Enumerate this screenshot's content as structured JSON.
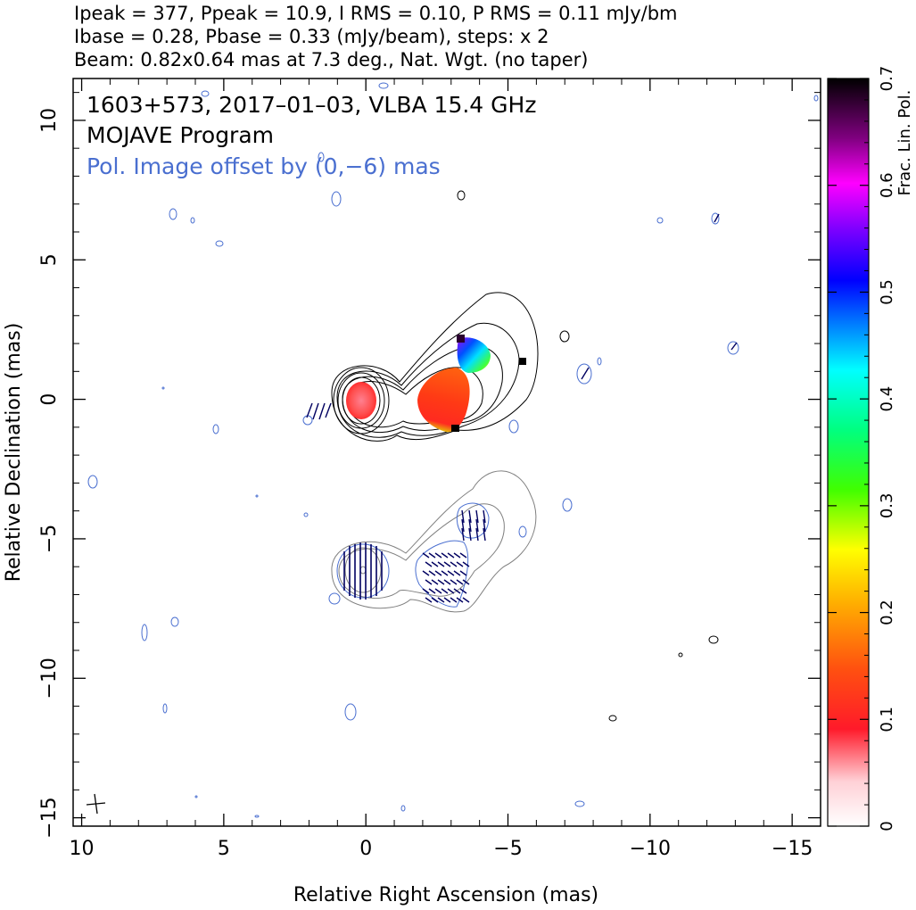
{
  "header": {
    "line1": "Ipeak = 377, Ppeak = 10.9, I RMS = 0.10, P RMS = 0.11 mJy/bm",
    "line2": "Ibase = 0.28, Pbase = 0.33 (mJy/beam), steps: x 2",
    "line3": "Beam: 0.82x0.64 mas at 7.3 deg., Nat. Wgt. (no taper)"
  },
  "plot_text": {
    "source_line": "1603+573, 2017–01–03, VLBA 15.4 GHz",
    "program_line": "MOJAVE Program",
    "pol_offset_line": "Pol. Image offset by (0,−6) mas"
  },
  "colors": {
    "intensity_contour": "#000000",
    "pol_contour": "#4a6fd0",
    "pol_offset_text": "#4a6fd0",
    "offset_image_contour": "#808080",
    "evpa_ticks": "#000060"
  },
  "chart_data": {
    "type": "heatmap",
    "title": "1603+573, 2017–01–03, VLBA 15.4 GHz",
    "xlabel": "Relative Right Ascension (mas)",
    "ylabel": "Relative Declination (mas)",
    "xlim": [
      10.3,
      -16.0
    ],
    "ylim": [
      -15.3,
      11.5
    ],
    "x_ticks": [
      10,
      5,
      0,
      -5,
      -10,
      -15
    ],
    "x_tick_labels": [
      "10",
      "5",
      "0",
      "−5",
      "−10",
      "−15"
    ],
    "y_ticks": [
      10,
      5,
      0,
      -5,
      -10,
      -15
    ],
    "y_tick_labels": [
      "10",
      "5",
      "0",
      "−5",
      "−10",
      "−15"
    ],
    "grid": false,
    "colorbar": {
      "label": "Frac. Lin. Pol.",
      "range": [
        0,
        0.7
      ],
      "ticks": [
        0,
        0.1,
        0.2,
        0.3,
        0.4,
        0.5,
        0.6,
        0.7
      ],
      "tick_labels": [
        "0",
        "0.1",
        "0.2",
        "0.3",
        "0.4",
        "0.5",
        "0.6",
        "0.7"
      ]
    },
    "stats": {
      "Ipeak_mJy_per_beam": 377,
      "Ppeak_mJy_per_beam": 10.9,
      "I_RMS_mJy_per_beam": 0.1,
      "P_RMS_mJy_per_beam": 0.11,
      "Ibase_mJy_per_beam": 0.28,
      "Pbase_mJy_per_beam": 0.33,
      "contour_step_factor": 2,
      "beam_major_mas": 0.82,
      "beam_minor_mas": 0.64,
      "beam_pa_deg": 7.3,
      "weighting": "Nat. Wgt. (no taper)",
      "pol_image_offset_mas": [
        0,
        -6
      ]
    },
    "core": {
      "ra": 0,
      "dec": 0,
      "frac_pol": 0.1
    },
    "jet_component": {
      "ra": -3.0,
      "dec": 0.0,
      "frac_pol_range": [
        0.1,
        0.2
      ]
    },
    "upper_component": {
      "ra": -4.0,
      "dec": 1.6,
      "frac_pol_range": [
        0.3,
        0.7
      ]
    }
  }
}
